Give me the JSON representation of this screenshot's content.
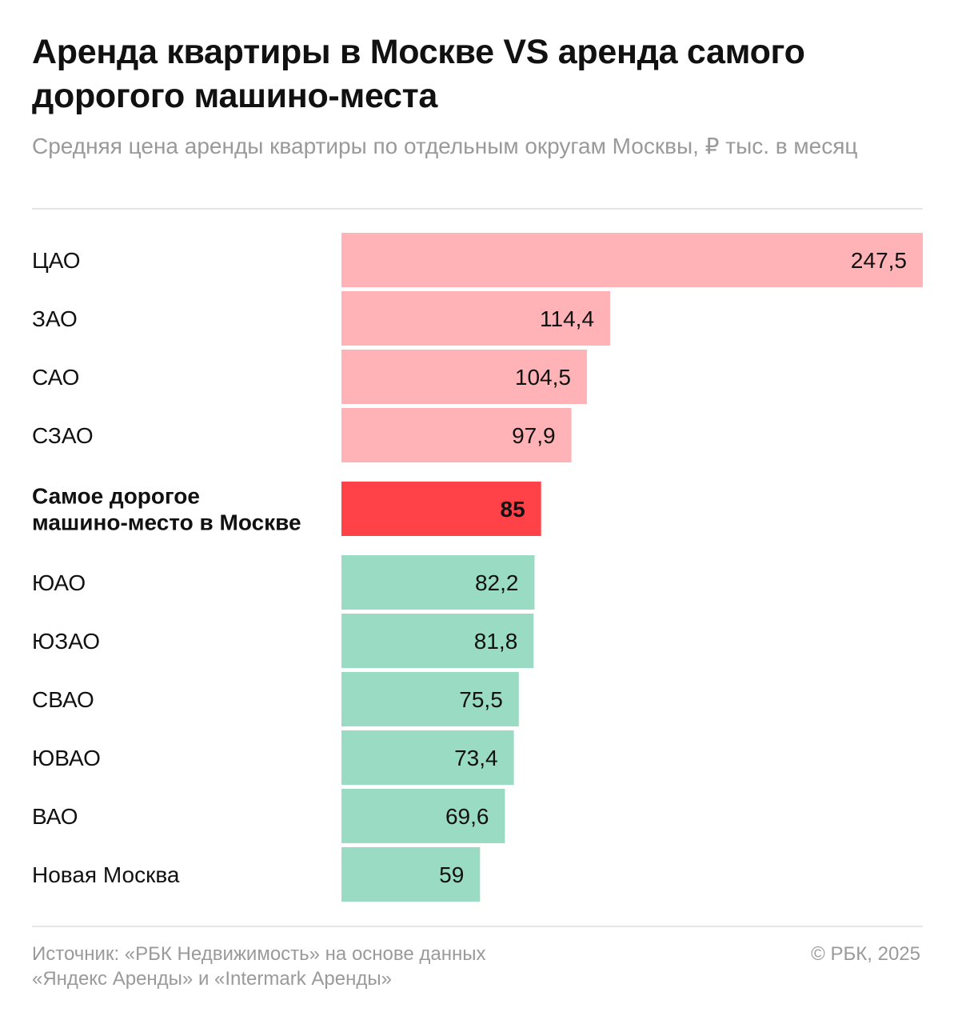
{
  "header": {
    "title": "Аренда квартиры в Москве VS аренда самого дорогого машино-места",
    "subtitle": "Средняя цена аренды квартиры по отдельным округам Москвы, ₽ тыс. в месяц"
  },
  "footer": {
    "source_line1": "Источник: «РБК Недвижимость» на основе данных",
    "source_line2": "«Яндекс Аренды» и «Intermark Аренды»",
    "copyright": "© РБК, 2025"
  },
  "colors": {
    "above": "#ffb3b6",
    "highlight": "#ff4148",
    "below": "#9adcc3"
  },
  "chart_data": {
    "type": "bar",
    "orientation": "horizontal",
    "title": "Аренда квартиры в Москве VS аренда самого дорогого машино-места",
    "subtitle": "Средняя цена аренды квартиры по отдельным округам Москвы, ₽ тыс. в месяц",
    "xlim": [
      0,
      247.5
    ],
    "grid": false,
    "legend": "none",
    "bars": [
      {
        "label": "ЦАО",
        "value": 247.5,
        "display": "247,5",
        "group": "above"
      },
      {
        "label": "ЗАО",
        "value": 114.4,
        "display": "114,4",
        "group": "above"
      },
      {
        "label": "САО",
        "value": 104.5,
        "display": "104,5",
        "group": "above"
      },
      {
        "label": "СЗАО",
        "value": 97.9,
        "display": "97,9",
        "group": "above"
      },
      {
        "label": "Самое дорогое машино-место в Москве",
        "label_lines": [
          "Самое дорогое",
          "машино-место в Москве"
        ],
        "value": 85,
        "display": "85",
        "group": "highlight"
      },
      {
        "label": "ЮАО",
        "value": 82.2,
        "display": "82,2",
        "group": "below"
      },
      {
        "label": "ЮЗАО",
        "value": 81.8,
        "display": "81,8",
        "group": "below"
      },
      {
        "label": "СВАО",
        "value": 75.5,
        "display": "75,5",
        "group": "below"
      },
      {
        "label": "ЮВАО",
        "value": 73.4,
        "display": "73,4",
        "group": "below"
      },
      {
        "label": "ВАО",
        "value": 69.6,
        "display": "69,6",
        "group": "below"
      },
      {
        "label": "Новая Москва",
        "value": 59,
        "display": "59",
        "group": "below"
      }
    ]
  }
}
